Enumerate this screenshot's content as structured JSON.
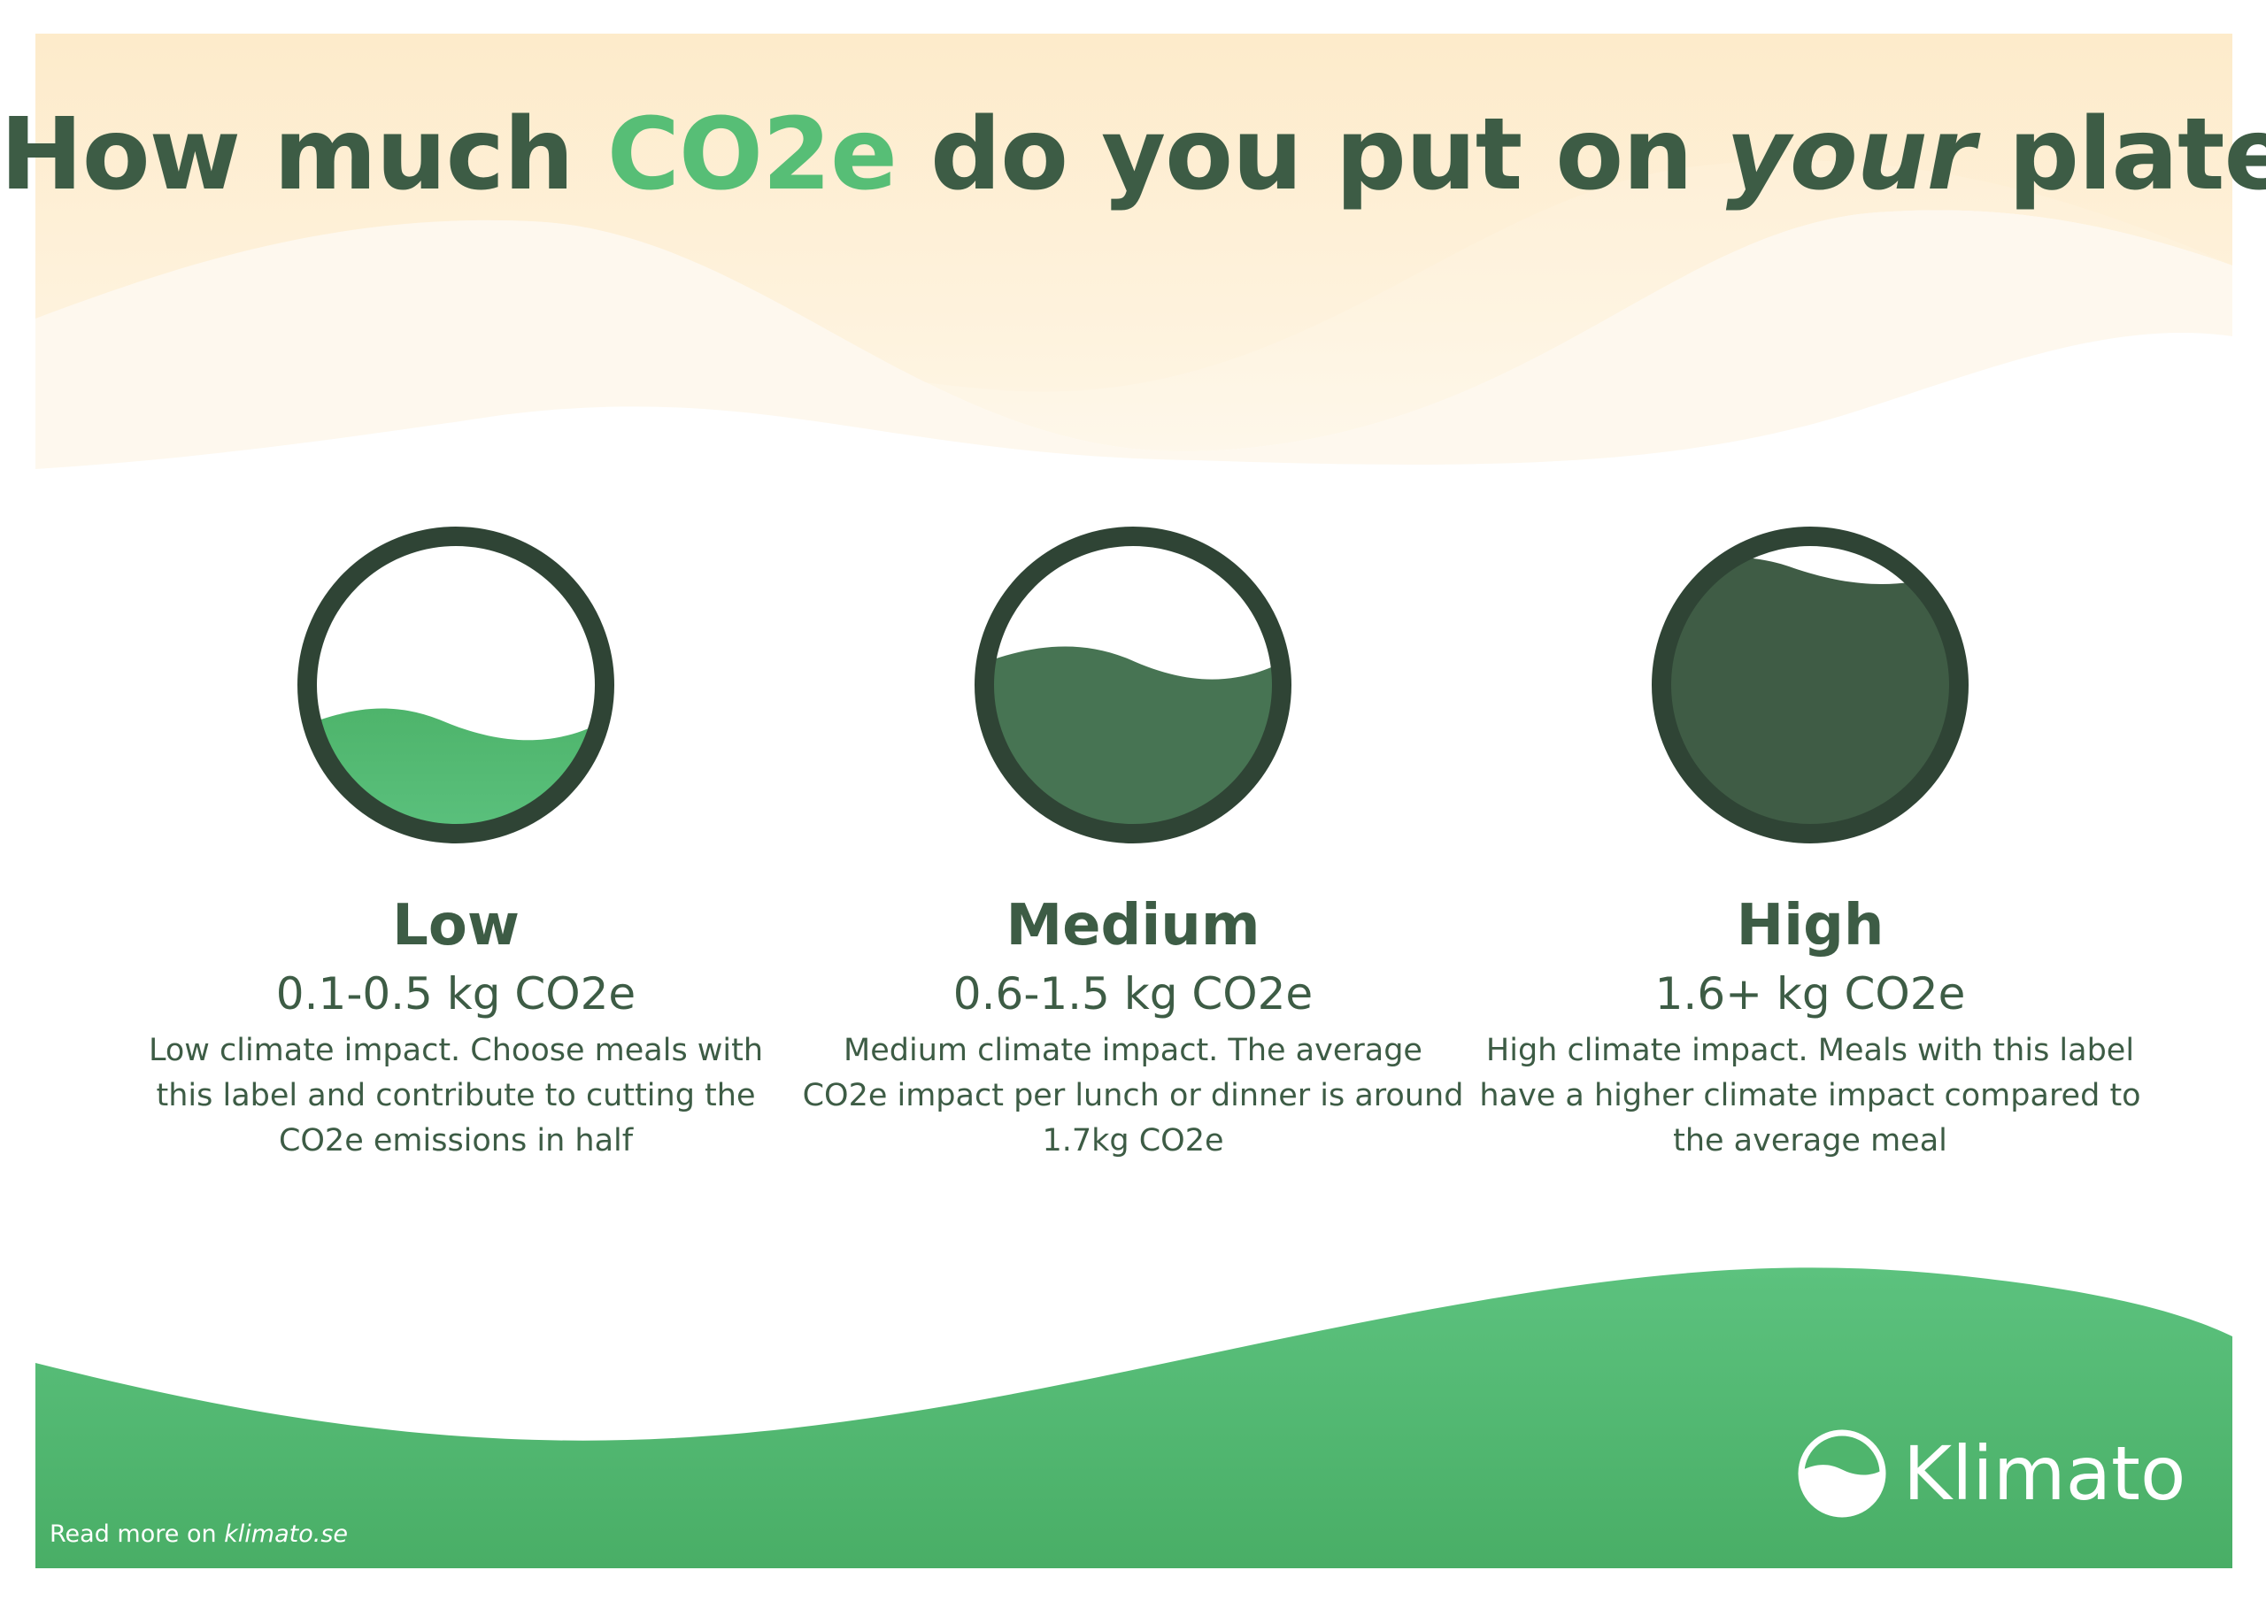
{
  "headline": {
    "part1": "How much",
    "accent": "CO2e",
    "part2": "do you put on",
    "emphasis": "your",
    "part3": "plate?"
  },
  "levels": [
    {
      "title": "Low",
      "range": "0.1-0.5 kg CO2e",
      "description": "Low climate impact. Choose meals with this label and contribute to cutting the CO2e emissions in half",
      "fill_level": 0.33
    },
    {
      "title": "Medium",
      "range": "0.6-1.5 kg CO2e",
      "description": "Medium climate impact. The average CO2e impact per lunch or dinner is around 1.7kg CO2e",
      "fill_level": 0.6
    },
    {
      "title": "High",
      "range": "1.6+ kg CO2e",
      "description": "High climate impact. Meals with this label have a higher climate impact compared to the average meal",
      "fill_level": 0.88
    }
  ],
  "logo": {
    "name": "Klimato",
    "icon": "klimato-logo-icon"
  },
  "footer": {
    "prefix": "Read more on",
    "link": "klimato.se"
  },
  "colors": {
    "dark_green": "#3d5c45",
    "accent_green": "#57be76",
    "bottom_green": "#4fb56d",
    "cream": "#fdf0d5",
    "ring": "#2f4435"
  }
}
